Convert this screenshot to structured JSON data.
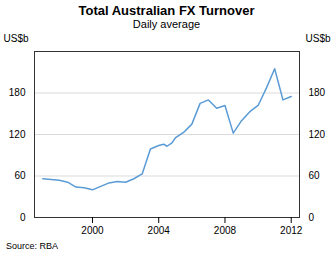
{
  "chart_data": {
    "type": "line",
    "title": "Total Australian FX Turnover",
    "subtitle": "Daily average",
    "source": "Source: RBA",
    "ylabel": "US$b",
    "y2label": "US$b",
    "color": "#5B9BD5",
    "grid": true,
    "xlim": [
      1996.5,
      2012.5
    ],
    "xticks": [
      2000,
      2004,
      2008,
      2012
    ],
    "ylim": [
      0,
      240
    ],
    "yticks": [
      0,
      60,
      120,
      180
    ],
    "x": [
      1997.0,
      1998.0,
      1998.5,
      1999.0,
      1999.5,
      2000.0,
      2000.5,
      2001.0,
      2001.5,
      2002.0,
      2002.5,
      2003.0,
      2003.5,
      2004.0,
      2004.3,
      2004.5,
      2004.8,
      2005.0,
      2005.5,
      2006.0,
      2006.5,
      2007.0,
      2007.5,
      2008.0,
      2008.5,
      2009.0,
      2009.5,
      2010.0,
      2010.5,
      2011.0,
      2011.5,
      2012.0
    ],
    "values": [
      56,
      54,
      51,
      44,
      43,
      40,
      45,
      50,
      52,
      51,
      56,
      63,
      99,
      104,
      106,
      103,
      108,
      115,
      123,
      135,
      165,
      170,
      158,
      162,
      122,
      140,
      153,
      162,
      187,
      215,
      170,
      175
    ]
  }
}
